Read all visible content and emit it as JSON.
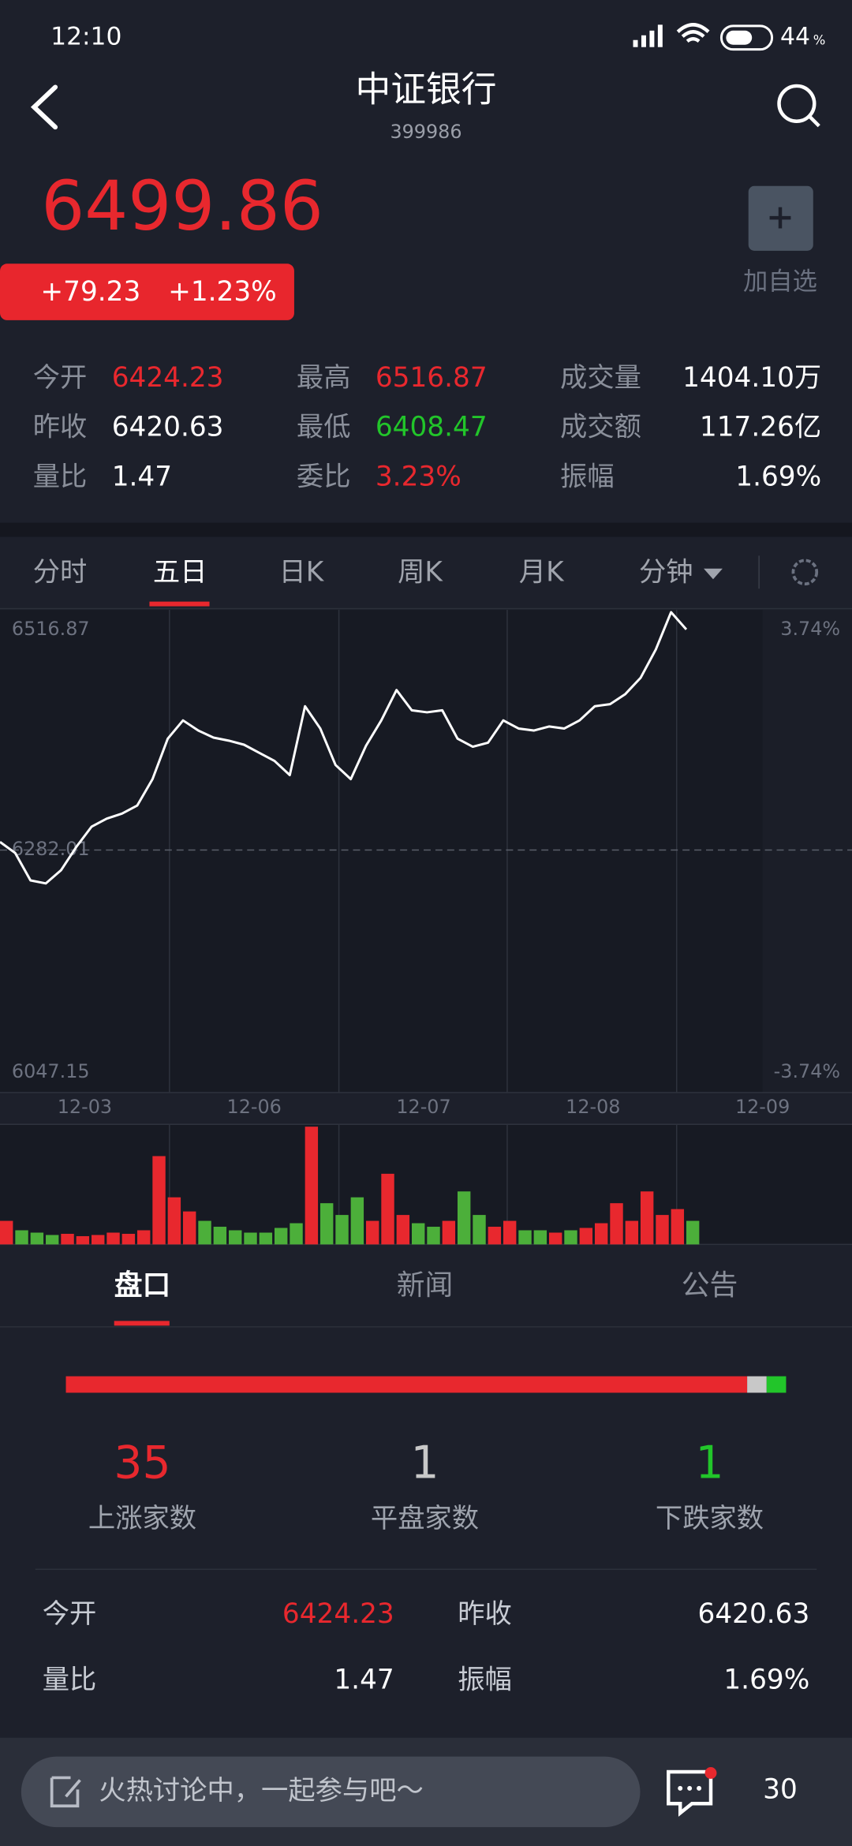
{
  "status": {
    "time": "12:10",
    "battery": "44",
    "battery_unit": "%"
  },
  "header": {
    "title": "中证银行",
    "code": "399986"
  },
  "quote": {
    "price": "6499.86",
    "change": "+79.23",
    "change_pct": "+1.23%",
    "watch_label": "加自选"
  },
  "stats": [
    [
      {
        "label": "今开",
        "value": "6424.23",
        "color": "#e8282e"
      },
      {
        "label": "最高",
        "value": "6516.87",
        "color": "#e8282e"
      },
      {
        "label": "成交量",
        "value": "1404.10万",
        "color": "#ffffff"
      }
    ],
    [
      {
        "label": "昨收",
        "value": "6420.63",
        "color": "#ffffff"
      },
      {
        "label": "最低",
        "value": "6408.47",
        "color": "#22c52a"
      },
      {
        "label": "成交额",
        "value": "117.26亿",
        "color": "#ffffff"
      }
    ],
    [
      {
        "label": "量比",
        "value": "1.47",
        "color": "#ffffff"
      },
      {
        "label": "委比",
        "value": "3.23%",
        "color": "#e8282e"
      },
      {
        "label": "振幅",
        "value": "1.69%",
        "color": "#ffffff"
      }
    ]
  ],
  "tabs": [
    "分时",
    "五日",
    "日K",
    "周K",
    "月K",
    "分钟"
  ],
  "chart_data": [
    {
      "type": "line",
      "ylim": [
        6047.15,
        6516.87
      ],
      "yticks": [
        6047.15,
        6282.01,
        6516.87
      ],
      "y2lim": [
        -3.74,
        3.74
      ],
      "y2ticks": [
        {
          "value": -3.74,
          "label": "-3.74%"
        },
        {
          "value": 3.74,
          "label": "3.74%"
        }
      ],
      "xlim": [
        0,
        50
      ],
      "xticks": [
        {
          "value": 5,
          "label": "12-03"
        },
        {
          "value": 15,
          "label": "12-06"
        },
        {
          "value": 25,
          "label": "12-07"
        },
        {
          "value": 35,
          "label": "12-08"
        },
        {
          "value": 45,
          "label": "12-09"
        }
      ],
      "series": [
        {
          "color": "#ffffff",
          "values": [
            6290,
            6279,
            6252,
            6249,
            6262,
            6285,
            6305,
            6313,
            6318,
            6326,
            6352,
            6392,
            6410,
            6400,
            6393,
            6390,
            6386,
            6378,
            6370,
            6356,
            6424,
            6402,
            6366,
            6352,
            6385,
            6410,
            6440,
            6420,
            6418,
            6420,
            6392,
            6384,
            6388,
            6410,
            6402,
            6400,
            6404,
            6402,
            6410,
            6424,
            6426,
            6436,
            6452,
            6480,
            6516.87,
            6499.86
          ]
        }
      ]
    },
    {
      "type": "bar",
      "ylim": [
        0,
        100
      ],
      "up_color": "#e8282e",
      "down_color": "#4caf3a",
      "values": [
        20,
        12,
        10,
        8,
        9,
        7,
        8,
        10,
        9,
        12,
        75,
        40,
        28,
        20,
        15,
        12,
        10,
        10,
        14,
        18,
        100,
        35,
        25,
        40,
        20,
        60,
        25,
        18,
        15,
        20,
        45,
        25,
        15,
        20,
        12,
        12,
        10,
        12,
        14,
        18,
        35,
        20,
        45,
        25,
        30,
        20
      ]
    }
  ],
  "detail_tabs": [
    "盘口",
    "新闻",
    "公告"
  ],
  "breadth": [
    {
      "count": 35,
      "label": "上涨家数",
      "color": "#e8282e"
    },
    {
      "count": 1,
      "label": "平盘家数",
      "color": "#c8c8c8"
    },
    {
      "count": 1,
      "label": "下跌家数",
      "color": "#22c52a"
    }
  ],
  "detail": [
    [
      {
        "label": "今开",
        "value": "6424.23",
        "color": "#e8282e"
      },
      {
        "label": "昨收",
        "value": "6420.63",
        "color": "#ffffff"
      }
    ],
    [
      {
        "label": "量比",
        "value": "1.47",
        "color": "#ffffff"
      },
      {
        "label": "振幅",
        "value": "1.69%",
        "color": "#ffffff"
      }
    ]
  ],
  "footer": {
    "placeholder": "火热讨论中，一起参与吧～",
    "comments": "30"
  }
}
